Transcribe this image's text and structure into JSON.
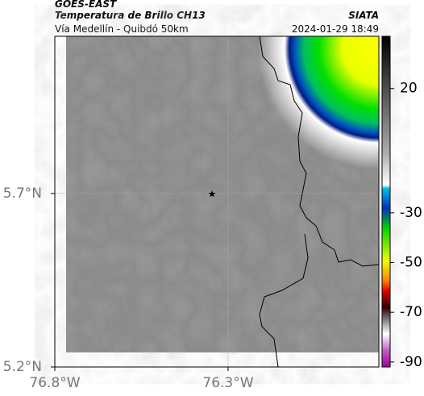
{
  "header": {
    "satellite": "GOES-EAST",
    "product": "Temperatura de Brillo CH13",
    "source": "SIATA",
    "region": "Vía Medellín - Quibdó 50km",
    "datetime": "2024-01-29 18:49"
  },
  "map": {
    "lonlim": [
      -76.8,
      -75.865
    ],
    "latlim": [
      5.2,
      6.153
    ],
    "lat_ticks": [
      {
        "value": 5.7,
        "label": "5.7°N"
      },
      {
        "value": 5.2,
        "label": "5.2°N"
      }
    ],
    "lon_ticks": [
      {
        "value": -76.8,
        "label": "76.8°W"
      },
      {
        "value": -76.3,
        "label": "76.3°W"
      }
    ],
    "grid": true
  },
  "colorbar": {
    "lim": [
      -92,
      41
    ],
    "ticks": [
      20,
      -30,
      -50,
      -70,
      -90
    ]
  }
}
